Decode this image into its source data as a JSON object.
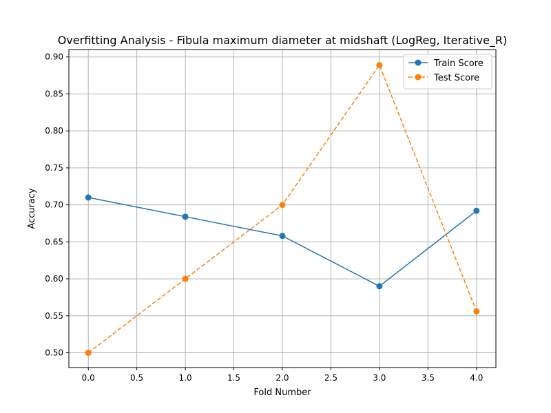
{
  "chart_data": {
    "type": "line",
    "title": "Overfitting Analysis - Fibula maximum diameter at midshaft (LogReg, Iterative_R)",
    "xlabel": "Fold Number",
    "ylabel": "Accuracy",
    "xlim": [
      -0.2,
      4.2
    ],
    "ylim": [
      0.48,
      0.91
    ],
    "x_ticks": [
      0.0,
      0.5,
      1.0,
      1.5,
      2.0,
      2.5,
      3.0,
      3.5,
      4.0
    ],
    "x_tick_labels": [
      "0.0",
      "0.5",
      "1.0",
      "1.5",
      "2.0",
      "2.5",
      "3.0",
      "3.5",
      "4.0"
    ],
    "y_ticks": [
      0.5,
      0.55,
      0.6,
      0.65,
      0.7,
      0.75,
      0.8,
      0.85,
      0.9
    ],
    "y_tick_labels": [
      "0.50",
      "0.55",
      "0.60",
      "0.65",
      "0.70",
      "0.75",
      "0.80",
      "0.85",
      "0.90"
    ],
    "grid": true,
    "legend_position": "top-right",
    "x": [
      0,
      1,
      2,
      3,
      4
    ],
    "series": [
      {
        "name": "Train Score",
        "values": [
          0.71,
          0.684,
          0.658,
          0.59,
          0.692
        ],
        "color": "#1f77b4",
        "style": "solid"
      },
      {
        "name": "Test Score",
        "values": [
          0.5,
          0.6,
          0.7,
          0.889,
          0.556
        ],
        "color": "#ff7f0e",
        "style": "dashed"
      }
    ]
  }
}
